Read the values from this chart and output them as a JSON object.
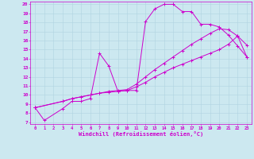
{
  "background_color": "#cce8f0",
  "line_color": "#cc00cc",
  "xlim": [
    -0.5,
    23.5
  ],
  "ylim": [
    6.8,
    20.3
  ],
  "xticks": [
    0,
    1,
    2,
    3,
    4,
    5,
    6,
    7,
    8,
    9,
    10,
    11,
    12,
    13,
    14,
    15,
    16,
    17,
    18,
    19,
    20,
    21,
    22,
    23
  ],
  "yticks": [
    7,
    8,
    9,
    10,
    11,
    12,
    13,
    14,
    15,
    16,
    17,
    18,
    19,
    20
  ],
  "xlabel": "Windchill (Refroidissement éolien,°C)",
  "series1": [
    [
      0,
      8.6
    ],
    [
      1,
      7.2
    ],
    [
      3,
      8.5
    ],
    [
      4,
      9.3
    ],
    [
      5,
      9.3
    ],
    [
      6,
      9.6
    ],
    [
      7,
      14.6
    ],
    [
      8,
      13.2
    ],
    [
      9,
      10.4
    ],
    [
      10,
      10.5
    ],
    [
      11,
      10.5
    ],
    [
      12,
      18.1
    ],
    [
      13,
      19.5
    ],
    [
      14,
      20.0
    ],
    [
      15,
      20.0
    ],
    [
      16,
      19.2
    ],
    [
      17,
      19.2
    ],
    [
      18,
      17.8
    ],
    [
      19,
      17.8
    ],
    [
      20,
      17.5
    ],
    [
      21,
      16.6
    ],
    [
      22,
      15.4
    ],
    [
      23,
      14.2
    ]
  ],
  "series2": [
    [
      0,
      8.6
    ],
    [
      3,
      9.3
    ],
    [
      4,
      9.6
    ],
    [
      5,
      9.8
    ],
    [
      6,
      10.0
    ],
    [
      7,
      10.2
    ],
    [
      8,
      10.3
    ],
    [
      9,
      10.4
    ],
    [
      10,
      10.5
    ],
    [
      11,
      10.9
    ],
    [
      12,
      11.4
    ],
    [
      13,
      12.0
    ],
    [
      14,
      12.5
    ],
    [
      15,
      13.0
    ],
    [
      16,
      13.4
    ],
    [
      17,
      13.8
    ],
    [
      18,
      14.2
    ],
    [
      19,
      14.6
    ],
    [
      20,
      15.0
    ],
    [
      21,
      15.6
    ],
    [
      22,
      16.5
    ],
    [
      23,
      14.2
    ]
  ],
  "series3": [
    [
      0,
      8.6
    ],
    [
      3,
      9.3
    ],
    [
      4,
      9.6
    ],
    [
      5,
      9.8
    ],
    [
      6,
      10.0
    ],
    [
      7,
      10.2
    ],
    [
      8,
      10.4
    ],
    [
      9,
      10.5
    ],
    [
      10,
      10.6
    ],
    [
      11,
      11.2
    ],
    [
      12,
      12.0
    ],
    [
      13,
      12.8
    ],
    [
      14,
      13.5
    ],
    [
      15,
      14.2
    ],
    [
      16,
      14.9
    ],
    [
      17,
      15.6
    ],
    [
      18,
      16.2
    ],
    [
      19,
      16.8
    ],
    [
      20,
      17.3
    ],
    [
      21,
      17.2
    ],
    [
      22,
      16.5
    ],
    [
      23,
      15.5
    ]
  ]
}
